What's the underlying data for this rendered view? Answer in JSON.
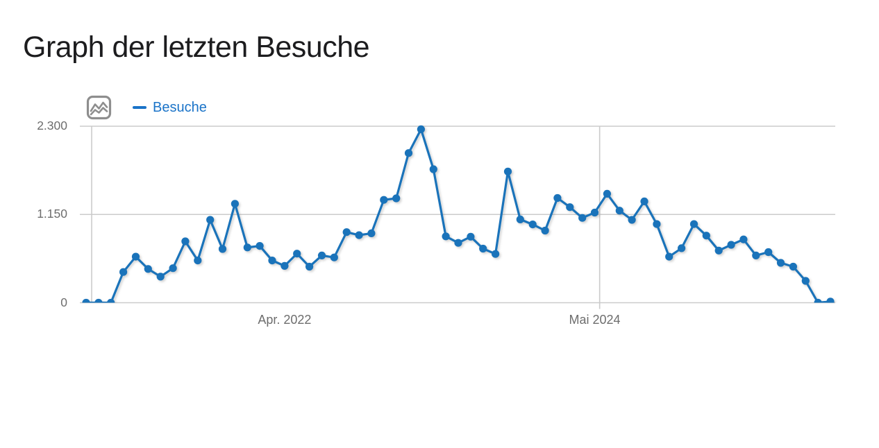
{
  "page": {
    "title": "Graph der letzten Besuche",
    "background": "#ffffff"
  },
  "legend": {
    "label": "Besuche",
    "marker_color": "#1a73c8",
    "icon": "line-chart-image-icon"
  },
  "chart_data": {
    "type": "line",
    "title": "Graph der letzten Besuche",
    "ylabel": "",
    "xlabel": "",
    "ylim": [
      0,
      2300
    ],
    "grid": "horizontal",
    "grid_color": "#cbcbcb",
    "legend_position": "top-left",
    "point_style": "filled-circle",
    "series": [
      {
        "name": "Besuche",
        "color": "#1a73ba",
        "values": [
          0,
          0,
          0,
          400,
          600,
          440,
          340,
          450,
          800,
          550,
          1080,
          700,
          1290,
          720,
          740,
          550,
          480,
          640,
          470,
          615,
          590,
          920,
          880,
          905,
          1340,
          1360,
          1950,
          2260,
          1740,
          865,
          780,
          860,
          705,
          635,
          1710,
          1085,
          1020,
          940,
          1365,
          1245,
          1105,
          1175,
          1420,
          1200,
          1080,
          1320,
          1025,
          600,
          710,
          1025,
          875,
          680,
          755,
          825,
          615,
          660,
          520,
          470,
          285,
          0,
          15
        ]
      }
    ],
    "y_ticks": [
      {
        "label": "0",
        "value": 0
      },
      {
        "label": "1.150",
        "value": 1150
      },
      {
        "label": "2.300",
        "value": 2300
      }
    ],
    "x_tick_labels": [
      {
        "label": "Apr. 2022",
        "index": 16
      },
      {
        "label": "Mai 2024",
        "index": 41
      }
    ],
    "vertical_gridline_indices": [
      0.45,
      41.4
    ]
  }
}
